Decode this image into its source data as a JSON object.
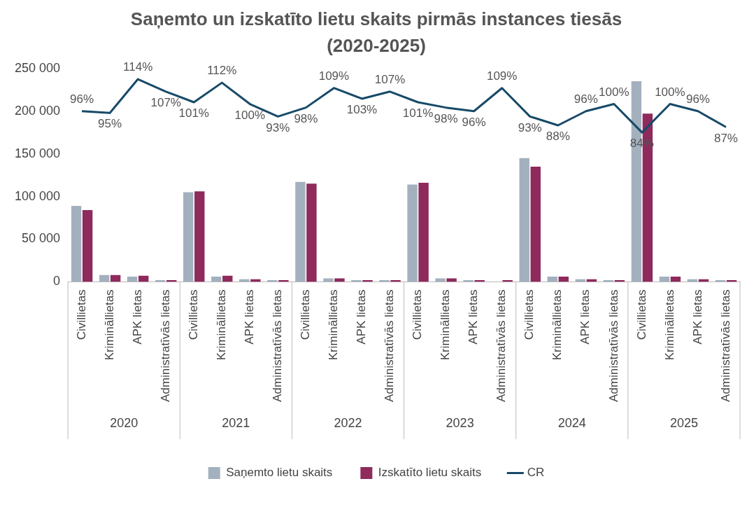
{
  "chart_data": {
    "type": "bar",
    "title": "Saņemto un izskatīto lietu skaits pirmās instances tiesās (2020-2025)",
    "categories": [
      "Civillietas",
      "Krimināllietas",
      "APK lietas",
      "Administratīvās lietas",
      "Civillietas",
      "Krimināllietas",
      "APK lietas",
      "Administratīvās lietas",
      "Civillietas",
      "Krimināllietas",
      "APK lietas",
      "Administratīvās lietas",
      "Civillietas",
      "Krimināllietas",
      "APK lietas",
      "Administratīvās lietas",
      "Civillietas",
      "Krimināllietas",
      "APK lietas",
      "Administratīvās lietas",
      "Civillietas",
      "Krimināllietas",
      "APK lietas",
      "Administratīvās lietas"
    ],
    "series": [
      {
        "name": "Saņemto lietu skaits",
        "color": "#a3b1bf",
        "values": [
          89000,
          8000,
          6000,
          2000,
          105000,
          6000,
          3000,
          2000,
          117000,
          4000,
          2000,
          2000,
          114000,
          4000,
          2000,
          null,
          145000,
          6000,
          3000,
          2000,
          235000,
          6000,
          3000,
          2000
        ]
      },
      {
        "name": "Izskatīto lietu skaits",
        "color": "#8e2a5c",
        "values": [
          84000,
          8000,
          7000,
          2000,
          106000,
          7000,
          3000,
          2000,
          115000,
          4000,
          2000,
          2000,
          116000,
          4000,
          2000,
          2000,
          135000,
          6000,
          3000,
          2000,
          197000,
          6000,
          3000,
          2000
        ]
      },
      {
        "name": "CR",
        "type": "line",
        "axis": "y2",
        "color": "#174a68",
        "values": [
          96,
          95,
          114,
          107,
          101,
          112,
          100,
          93,
          98,
          109,
          103,
          107,
          101,
          98,
          96,
          109,
          93,
          88,
          96,
          100,
          84,
          100,
          96,
          87
        ],
        "value_labels": [
          "96%",
          "95%",
          "114%",
          "107%",
          "101%",
          "112%",
          "100%",
          "93%",
          "98%",
          "109%",
          "103%",
          "107%",
          "101%",
          "98%",
          "96%",
          "109%",
          "93%",
          "88%",
          "96%",
          "100%",
          "84%",
          "100%",
          "96%",
          "87%"
        ]
      }
    ],
    "ylim": [
      0,
      250000
    ],
    "yticks": [
      {
        "value": 0,
        "label": "0"
      },
      {
        "value": 50000,
        "label": "50 000"
      },
      {
        "value": 100000,
        "label": "100 000"
      },
      {
        "value": 150000,
        "label": "150 000"
      },
      {
        "value": 200000,
        "label": "200 000"
      },
      {
        "value": 250000,
        "label": "250 000"
      }
    ],
    "annotations": [
      "2020",
      "2021",
      "2022",
      "2023",
      "2024",
      "2025"
    ],
    "grid": false,
    "legend": "bottom",
    "marker": "none"
  }
}
